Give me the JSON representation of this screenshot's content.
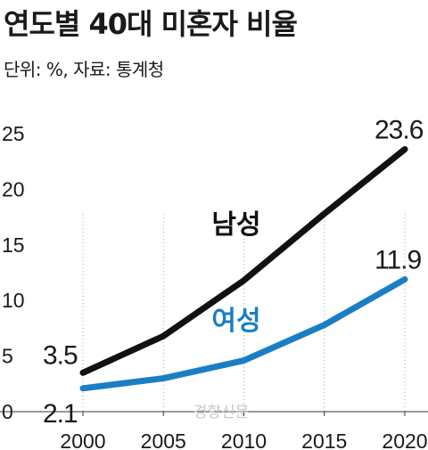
{
  "header": {
    "title": "연도별 40대 미혼자 비율",
    "subtitle": "단위: %, 자료: 통계청"
  },
  "watermark": "경향신문",
  "chart_data": {
    "type": "line",
    "title": "연도별 40대 미혼자 비율",
    "subtitle": "단위: %, 자료: 통계청",
    "xlabel": "",
    "ylabel": "",
    "x": [
      2000,
      2005,
      2010,
      2015,
      2020
    ],
    "x_tick_labels": [
      "2000",
      "2005",
      "2010",
      "2015",
      "2020"
    ],
    "y_tick_labels": [
      "0",
      "5",
      "10",
      "15",
      "20",
      "25"
    ],
    "ylim": [
      0,
      25
    ],
    "grid": false,
    "series": [
      {
        "name": "남성",
        "color": "#111111",
        "values": [
          3.5,
          6.8,
          11.8,
          17.8,
          23.6
        ],
        "first_label": "3.5",
        "last_label": "23.6"
      },
      {
        "name": "여성",
        "color": "#1a7ec4",
        "values": [
          2.1,
          3.0,
          4.6,
          7.8,
          11.9
        ],
        "first_label": "2.1",
        "last_label": "11.9"
      }
    ]
  }
}
